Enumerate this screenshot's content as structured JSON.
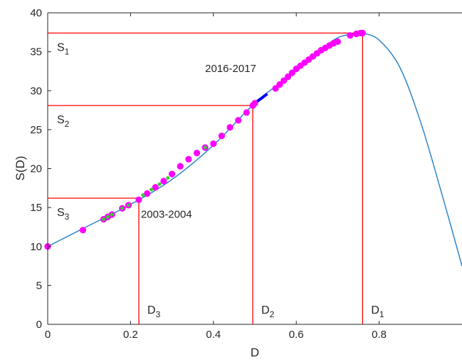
{
  "chart_data": {
    "type": "line",
    "xlabel": "D",
    "ylabel": "S(D)",
    "xlim": [
      0,
      1
    ],
    "ylim": [
      0,
      40
    ],
    "x_ticks": [
      0,
      0.2,
      0.4,
      0.6,
      0.8
    ],
    "x_tick_labels": [
      "0",
      "0.2",
      "0.4",
      "0.6",
      "0.8"
    ],
    "y_ticks": [
      0,
      5,
      10,
      15,
      20,
      25,
      30,
      35,
      40
    ],
    "y_tick_labels": [
      "0",
      "5",
      "10",
      "15",
      "20",
      "25",
      "30",
      "35",
      "40"
    ],
    "grid": false,
    "colors": {
      "curve": "#2e86c8",
      "magenta": "#ff00ff",
      "green": "#32cd32",
      "blue_segment": "#0000ff",
      "guide": "#ff0000"
    },
    "curve": {
      "x": [
        0,
        0.1,
        0.2,
        0.3,
        0.4,
        0.5,
        0.6,
        0.65,
        0.7,
        0.75,
        0.76,
        0.8,
        0.85,
        0.9,
        0.95,
        1.0
      ],
      "y": [
        10.0,
        12.7,
        15.4,
        18.6,
        23.0,
        28.4,
        32.6,
        34.8,
        36.8,
        37.4,
        37.4,
        36.5,
        33.0,
        26.0,
        17.0,
        7.5
      ]
    },
    "points_magenta": {
      "x": [
        0.0,
        0.085,
        0.135,
        0.145,
        0.155,
        0.18,
        0.195,
        0.22,
        0.24,
        0.26,
        0.28,
        0.3,
        0.32,
        0.34,
        0.36,
        0.38,
        0.4,
        0.42,
        0.44,
        0.46,
        0.48,
        0.495,
        0.5,
        0.55,
        0.56,
        0.57,
        0.58,
        0.59,
        0.6,
        0.61,
        0.62,
        0.63,
        0.64,
        0.65,
        0.66,
        0.67,
        0.68,
        0.69,
        0.7,
        0.73,
        0.745,
        0.755,
        0.76
      ],
      "y": [
        10.0,
        12.1,
        13.5,
        13.8,
        14.1,
        14.9,
        15.3,
        16.0,
        16.8,
        17.6,
        18.4,
        19.3,
        20.3,
        21.2,
        22.0,
        22.7,
        23.2,
        24.2,
        25.3,
        26.2,
        27.2,
        28.1,
        28.4,
        30.3,
        30.8,
        31.3,
        31.8,
        32.3,
        32.8,
        33.2,
        33.6,
        34.0,
        34.4,
        34.8,
        35.2,
        35.5,
        35.8,
        36.1,
        36.3,
        37.1,
        37.3,
        37.4,
        37.4
      ]
    },
    "points_green": {
      "x": [
        0.135,
        0.145,
        0.155,
        0.18,
        0.195,
        0.23,
        0.25,
        0.27,
        0.29,
        0.38
      ],
      "y": [
        13.5,
        13.8,
        14.1,
        14.9,
        15.3,
        16.6,
        17.3,
        18.0,
        18.8,
        22.7
      ]
    },
    "blue_segment": {
      "x": [
        0.5,
        0.53
      ],
      "y": [
        28.4,
        29.6
      ]
    },
    "guides": [
      {
        "d": 0.76,
        "s": 37.4,
        "d_label": "D",
        "d_sub": "1",
        "s_label": "S",
        "s_sub": "1"
      },
      {
        "d": 0.495,
        "s": 28.1,
        "d_label": "D",
        "d_sub": "2",
        "s_label": "S",
        "s_sub": "2"
      },
      {
        "d": 0.22,
        "s": 16.2,
        "d_label": "D",
        "d_sub": "3",
        "s_label": "S",
        "s_sub": "3"
      }
    ],
    "annotations": [
      {
        "text": "2016-2017",
        "x": 0.38,
        "y": 32.4
      },
      {
        "text": "2003-2004",
        "x": 0.225,
        "y": 13.7
      }
    ]
  }
}
